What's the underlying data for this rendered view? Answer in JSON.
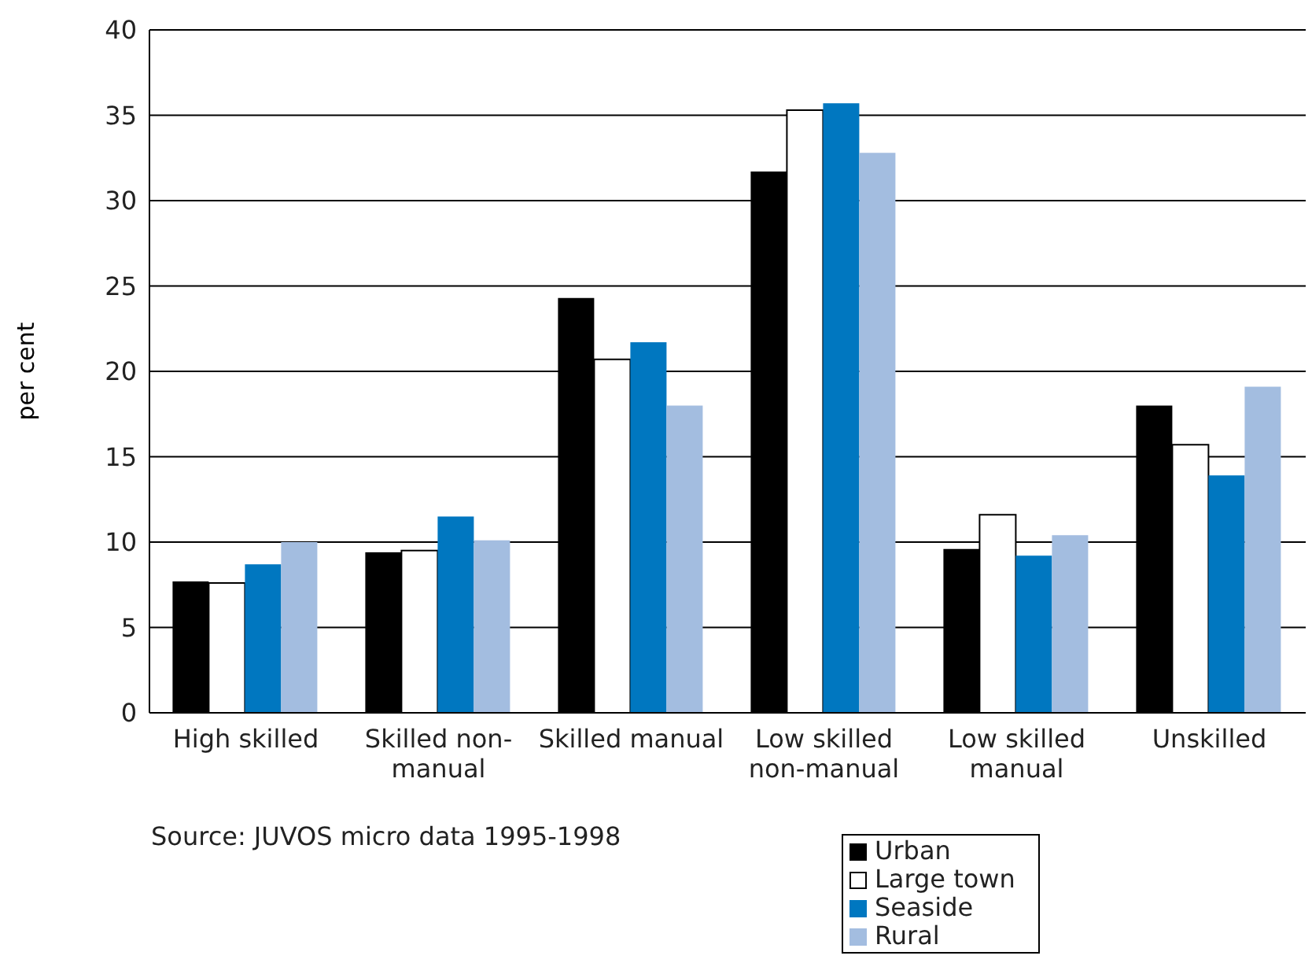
{
  "chart_data": {
    "type": "bar",
    "ylabel": "per cent",
    "categories": [
      "High skilled",
      "Skilled non-manual",
      "Skilled manual",
      "Low skilled non-manual",
      "Low skilled manual",
      "Unskilled"
    ],
    "series": [
      {
        "name": "Urban",
        "color": "#000000",
        "values": [
          7.7,
          9.4,
          24.3,
          31.7,
          9.6,
          18.0
        ]
      },
      {
        "name": "Large town",
        "color": "#ffffff",
        "values": [
          7.6,
          9.5,
          20.7,
          35.3,
          11.6,
          15.7
        ]
      },
      {
        "name": "Seaside",
        "color": "#0077c0",
        "values": [
          8.7,
          11.5,
          21.7,
          35.7,
          9.2,
          13.9
        ]
      },
      {
        "name": "Rural",
        "color": "#a3bde0",
        "values": [
          10.0,
          10.1,
          18.0,
          32.8,
          10.4,
          19.1
        ]
      }
    ],
    "ylim": [
      0,
      40
    ],
    "yticks": [
      0,
      5,
      10,
      15,
      20,
      25,
      30,
      35,
      40
    ],
    "grid": "y",
    "legend": "bottom right",
    "annotations": [
      "Source: JUVOS micro data 1995-1998"
    ]
  }
}
